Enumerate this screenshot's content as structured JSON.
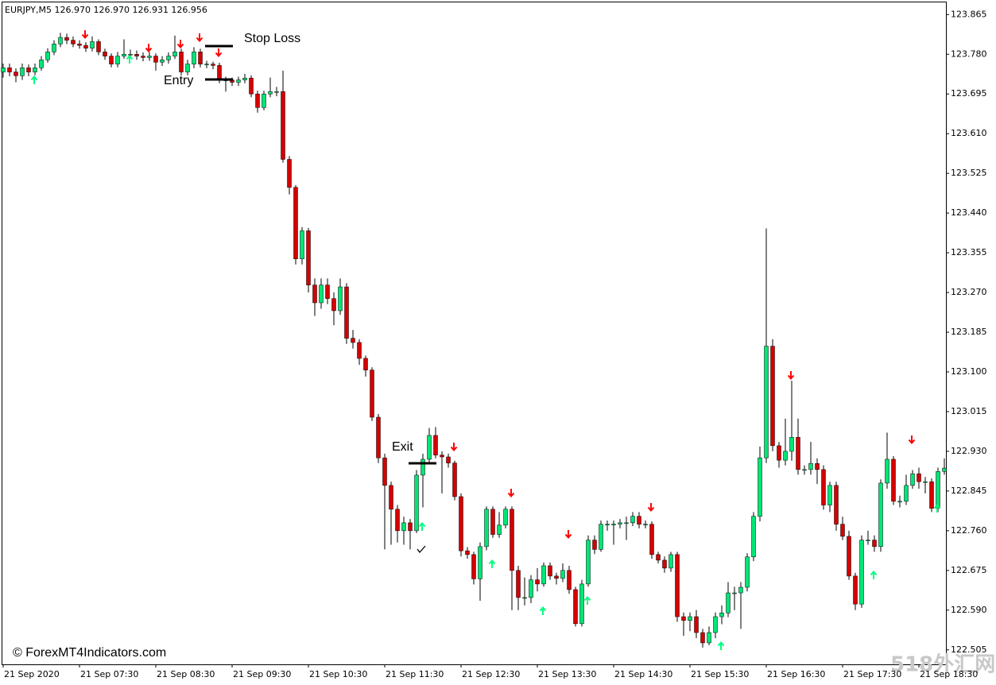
{
  "chart_data": {
    "type": "candlestick",
    "header": "EURJPY,M5  126.970 126.970 126.931 126.956",
    "annotations": [
      "Stop Loss",
      "Entry",
      "Exit"
    ],
    "copyright": "© ForexMT4Indicators.com",
    "watermark": "518外汇网",
    "up_color": "#00e676",
    "down_color": "#d50000",
    "wick_color": "#000000",
    "ylim": [
      122.474,
      123.891
    ],
    "yticks": [
      123.865,
      {
        "value": 123.78,
        "label": "123.780"
      },
      123.695,
      {
        "value": 123.61,
        "label": "123.610"
      },
      123.525,
      {
        "value": 123.44,
        "label": "123.440"
      },
      123.355,
      {
        "value": 123.27,
        "label": "123.270"
      },
      123.185,
      {
        "value": 123.1,
        "label": "123.100"
      },
      123.015,
      {
        "value": 122.93,
        "label": "122.930"
      },
      122.845,
      {
        "value": 122.76,
        "label": "122.760"
      },
      122.675,
      {
        "value": 122.59,
        "label": "122.590"
      },
      122.505
    ],
    "categories": [
      "21 Sep 2020",
      null,
      null,
      null,
      null,
      null,
      null,
      null,
      null,
      null,
      null,
      null,
      "21 Sep 07:30",
      null,
      null,
      null,
      null,
      null,
      null,
      null,
      null,
      null,
      null,
      null,
      "21 Sep 08:30",
      null,
      null,
      null,
      null,
      null,
      null,
      null,
      null,
      null,
      null,
      null,
      "21 Sep 09:30",
      null,
      null,
      null,
      null,
      null,
      null,
      null,
      null,
      null,
      null,
      null,
      "21 Sep 10:30",
      null,
      null,
      null,
      null,
      null,
      null,
      null,
      null,
      null,
      null,
      null,
      "21 Sep 11:30",
      null,
      null,
      null,
      null,
      null,
      null,
      null,
      null,
      null,
      null,
      null,
      "21 Sep 12:30",
      null,
      null,
      null,
      null,
      null,
      null,
      null,
      null,
      null,
      null,
      null,
      "21 Sep 13:30",
      null,
      null,
      null,
      null,
      null,
      null,
      null,
      null,
      null,
      null,
      null,
      "21 Sep 14:30",
      null,
      null,
      null,
      null,
      null,
      null,
      null,
      null,
      null,
      null,
      null,
      "21 Sep 15:30",
      null,
      null,
      null,
      null,
      null,
      null,
      null,
      null,
      null,
      null,
      null,
      "21 Sep 16:30",
      null,
      null,
      null,
      null,
      null,
      null,
      null,
      null,
      null,
      null,
      null,
      "21 Sep 17:30",
      null,
      null,
      null,
      null,
      null,
      null,
      null,
      null,
      null,
      null,
      null,
      "21 Sep 18:30",
      null,
      null,
      null,
      null
    ],
    "open": [
      123.742,
      123.751,
      123.742,
      123.734,
      123.751,
      123.742,
      123.751,
      123.768,
      123.785,
      123.802,
      123.816,
      123.81,
      123.802,
      123.799,
      123.793,
      123.807,
      123.785,
      123.776,
      123.759,
      123.776,
      123.78,
      123.78,
      123.776,
      123.773,
      123.776,
      123.763,
      123.768,
      123.776,
      123.785,
      123.742,
      123.759,
      123.785,
      123.759,
      123.759,
      123.756,
      123.725,
      123.725,
      123.72,
      123.725,
      123.729,
      123.695,
      123.666,
      123.695,
      123.7,
      123.7,
      123.555,
      123.495,
      123.342,
      123.402,
      123.286,
      123.248,
      123.286,
      123.257,
      123.231,
      123.282,
      123.172,
      123.163,
      123.129,
      123.104,
      123.003,
      122.916,
      122.857,
      122.806,
      122.76,
      122.777,
      122.76,
      122.879,
      122.913,
      122.964,
      122.922,
      122.918,
      122.905,
      122.833,
      122.717,
      122.709,
      122.657,
      122.726,
      122.806,
      122.752,
      122.772,
      122.806,
      122.675,
      122.617,
      122.617,
      122.655,
      122.646,
      122.685,
      122.663,
      122.658,
      122.675,
      122.634,
      122.561,
      122.646,
      122.74,
      122.72,
      122.774,
      122.774,
      122.774,
      122.777,
      122.777,
      122.791,
      122.774,
      122.774,
      122.709,
      122.697,
      122.68,
      122.709,
      122.576,
      122.568,
      122.576,
      122.542,
      122.52,
      122.542,
      122.576,
      122.584,
      122.627,
      122.627,
      122.639,
      122.704,
      122.791,
      122.916,
      123.155,
      122.942,
      122.911,
      122.93,
      122.96,
      122.891,
      122.891,
      122.904,
      122.891,
      122.815,
      122.857,
      122.774,
      122.748,
      122.663,
      122.603,
      122.74,
      122.74,
      122.726,
      122.862,
      122.913,
      122.823,
      122.823,
      122.857,
      122.882,
      122.865,
      122.865,
      122.808,
      122.887
    ],
    "high": [
      123.76,
      123.76,
      123.75,
      123.76,
      123.758,
      123.76,
      123.776,
      123.793,
      123.81,
      123.826,
      123.824,
      123.818,
      123.81,
      123.806,
      123.818,
      123.812,
      123.792,
      123.782,
      123.785,
      123.812,
      123.79,
      123.788,
      123.784,
      123.785,
      123.782,
      123.776,
      123.784,
      123.82,
      123.792,
      123.768,
      123.795,
      123.792,
      123.766,
      123.764,
      123.762,
      123.732,
      123.73,
      123.732,
      123.738,
      123.735,
      123.702,
      123.702,
      123.73,
      123.71,
      123.745,
      123.562,
      123.5,
      123.41,
      123.408,
      123.3,
      123.3,
      123.3,
      123.27,
      123.3,
      123.29,
      123.19,
      123.17,
      123.135,
      123.11,
      123.01,
      122.925,
      122.865,
      122.815,
      122.79,
      122.785,
      122.89,
      122.925,
      122.98,
      122.982,
      122.93,
      122.925,
      122.91,
      122.84,
      122.725,
      122.715,
      122.735,
      122.812,
      122.812,
      122.8,
      122.812,
      122.812,
      122.685,
      122.66,
      122.665,
      122.68,
      122.692,
      122.692,
      122.67,
      122.69,
      122.685,
      122.64,
      122.655,
      122.75,
      122.75,
      122.782,
      122.782,
      122.782,
      122.785,
      122.79,
      122.8,
      122.8,
      122.782,
      122.78,
      122.715,
      122.705,
      122.715,
      122.715,
      122.585,
      122.585,
      122.59,
      122.55,
      122.555,
      122.585,
      122.6,
      122.65,
      122.64,
      122.65,
      122.712,
      122.8,
      122.94,
      123.407,
      123.17,
      122.95,
      123.0,
      123.081,
      123.0,
      122.9,
      122.95,
      122.915,
      122.9,
      122.865,
      122.865,
      122.79,
      122.76,
      122.67,
      122.75,
      122.76,
      122.75,
      122.87,
      122.97,
      122.92,
      122.835,
      122.88,
      122.89,
      122.895,
      122.875,
      122.872,
      122.895,
      122.915
    ],
    "low": [
      123.73,
      123.733,
      123.72,
      123.725,
      123.733,
      123.735,
      123.745,
      123.762,
      123.778,
      123.795,
      123.802,
      123.795,
      123.792,
      123.785,
      123.786,
      123.778,
      123.768,
      123.752,
      123.752,
      123.77,
      123.772,
      123.768,
      123.765,
      123.766,
      123.745,
      123.755,
      123.76,
      123.77,
      123.735,
      123.735,
      123.75,
      123.752,
      123.75,
      123.748,
      123.718,
      123.7,
      123.712,
      123.712,
      123.718,
      123.688,
      123.655,
      123.66,
      123.688,
      123.69,
      123.548,
      123.48,
      123.33,
      123.33,
      123.27,
      123.22,
      123.235,
      123.245,
      123.2,
      123.222,
      123.16,
      123.15,
      123.115,
      123.09,
      122.995,
      122.905,
      122.72,
      122.73,
      122.735,
      122.73,
      122.72,
      122.755,
      122.81,
      122.905,
      122.915,
      122.84,
      122.895,
      122.825,
      122.705,
      122.7,
      122.645,
      122.61,
      122.718,
      122.745,
      122.745,
      122.765,
      122.59,
      122.59,
      122.6,
      122.605,
      122.63,
      122.64,
      122.655,
      122.645,
      122.65,
      122.625,
      122.555,
      122.555,
      122.64,
      122.71,
      122.715,
      122.76,
      122.73,
      122.765,
      122.74,
      122.77,
      122.765,
      122.765,
      122.7,
      122.69,
      122.67,
      122.672,
      122.565,
      122.535,
      122.545,
      122.53,
      122.51,
      122.515,
      122.53,
      122.56,
      122.575,
      122.59,
      122.55,
      122.63,
      122.695,
      122.78,
      122.905,
      122.93,
      122.895,
      122.9,
      122.91,
      122.88,
      122.88,
      122.88,
      122.86,
      122.805,
      122.8,
      122.76,
      122.74,
      122.655,
      122.59,
      122.595,
      122.73,
      122.715,
      122.715,
      122.85,
      122.815,
      122.81,
      122.815,
      122.85,
      122.85,
      122.84,
      122.8,
      122.8,
      122.88
    ],
    "close": [
      123.751,
      123.742,
      123.734,
      123.751,
      123.742,
      123.751,
      123.768,
      123.785,
      123.802,
      123.816,
      123.81,
      123.802,
      123.799,
      123.793,
      123.807,
      123.785,
      123.776,
      123.759,
      123.776,
      123.78,
      123.78,
      123.776,
      123.773,
      123.776,
      123.763,
      123.768,
      123.776,
      123.785,
      123.742,
      123.759,
      123.785,
      123.759,
      123.759,
      123.756,
      123.725,
      123.725,
      123.72,
      123.725,
      123.729,
      123.695,
      123.666,
      123.695,
      123.7,
      123.7,
      123.555,
      123.495,
      123.342,
      123.402,
      123.286,
      123.248,
      123.286,
      123.257,
      123.231,
      123.282,
      123.172,
      123.163,
      123.129,
      123.104,
      123.003,
      122.916,
      122.857,
      122.806,
      122.76,
      122.777,
      122.76,
      122.879,
      122.913,
      122.964,
      122.922,
      122.918,
      122.905,
      122.833,
      122.717,
      122.709,
      122.657,
      122.726,
      122.806,
      122.752,
      122.772,
      122.806,
      122.675,
      122.617,
      122.617,
      122.655,
      122.646,
      122.685,
      122.663,
      122.658,
      122.675,
      122.634,
      122.561,
      122.646,
      122.74,
      122.72,
      122.774,
      122.774,
      122.774,
      122.777,
      122.777,
      122.791,
      122.774,
      122.774,
      122.709,
      122.697,
      122.68,
      122.709,
      122.576,
      122.568,
      122.576,
      122.542,
      122.52,
      122.542,
      122.576,
      122.584,
      122.627,
      122.627,
      122.639,
      122.704,
      122.791,
      122.916,
      123.155,
      122.942,
      122.911,
      122.93,
      122.96,
      122.891,
      122.891,
      122.904,
      122.891,
      122.815,
      122.857,
      122.774,
      122.748,
      122.663,
      122.603,
      122.74,
      122.74,
      122.726,
      122.862,
      122.913,
      122.823,
      122.823,
      122.857,
      122.882,
      122.865,
      122.865,
      122.808,
      122.887,
      122.894
    ]
  }
}
